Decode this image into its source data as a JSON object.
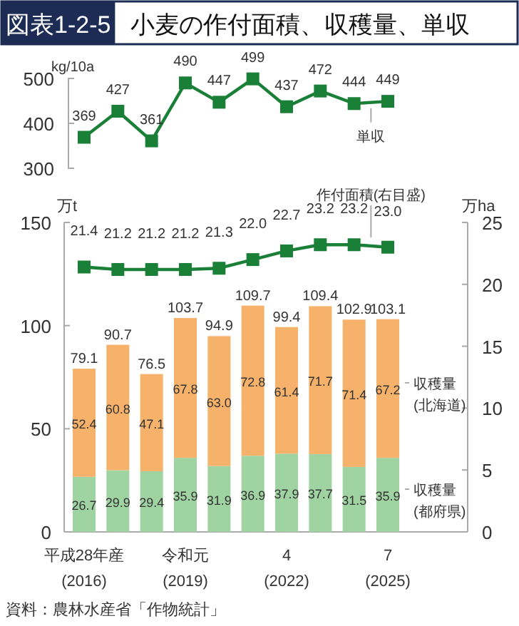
{
  "chart_data": [
    {
      "type": "line",
      "title": "図表1-2-5 小麦の作付面積、収穫量、単収",
      "ylabel": "kg/10a",
      "categories": [
        null,
        null,
        null,
        null,
        null,
        null,
        null,
        null,
        null,
        null
      ],
      "series": [
        {
          "name": "単収",
          "color": "#1a7f37",
          "values": [
            369,
            427,
            361,
            490,
            447,
            499,
            437,
            472,
            444,
            449
          ]
        }
      ],
      "ylim": [
        300,
        500
      ],
      "yticks": [
        300,
        400,
        500
      ],
      "data_labels": true,
      "marker": "square"
    },
    {
      "type": "bar",
      "stacked": true,
      "ylabel": "万t",
      "y2label": "万ha",
      "categories": [
        "平成28年産\n(2016)",
        null,
        null,
        "令和元\n(2019)",
        null,
        null,
        "4\n(2022)",
        null,
        null,
        "7\n(2025)"
      ],
      "series": [
        {
          "name": "収穫量\n(都府県)",
          "type": "bar",
          "color": "#9fd3a2",
          "values": [
            26.7,
            29.9,
            29.4,
            35.9,
            31.9,
            36.9,
            37.9,
            37.7,
            31.5,
            35.9
          ],
          "value_labels": [
            "26.7",
            "29.9",
            "29.4",
            "35.9",
            "31.9",
            "36.9",
            "37.9",
            "37.7",
            "31.5",
            "35.9"
          ]
        },
        {
          "name": "収穫量\n(北海道)",
          "type": "bar",
          "color": "#f6b26b",
          "values": [
            52.4,
            60.8,
            47.1,
            67.8,
            63.0,
            72.8,
            61.4,
            71.7,
            71.4,
            67.2
          ],
          "value_labels": [
            "52.4",
            "60.8",
            "47.1",
            "67.8",
            "63.0",
            "72.8",
            "61.4",
            "71.7",
            "71.4",
            "67.2"
          ]
        },
        {
          "name": "作付面積(右目盛)",
          "type": "line",
          "axis": "y2",
          "color": "#1a7f37",
          "values": [
            21.4,
            21.2,
            21.2,
            21.2,
            21.3,
            22.0,
            22.7,
            23.2,
            23.2,
            23.0
          ],
          "value_labels": [
            "21.4",
            "21.2",
            "21.2",
            "21.2",
            "21.3",
            "22.0",
            "22.7",
            "23.2",
            "23.2",
            "23.0"
          ]
        }
      ],
      "totals": [
        "79.1",
        "90.7",
        "76.5",
        "103.7",
        "94.9",
        "109.7",
        "99.4",
        "109.4",
        "102.9",
        "103.1"
      ],
      "ylim": [
        0,
        150
      ],
      "yticks": [
        0,
        50,
        100,
        150
      ],
      "y2lim": [
        0,
        25
      ],
      "y2ticks": [
        0,
        5,
        10,
        15,
        20,
        25
      ],
      "data_labels": true,
      "marker": "square",
      "annotations": [
        "資料：農林水産省「作物統計」"
      ]
    }
  ]
}
